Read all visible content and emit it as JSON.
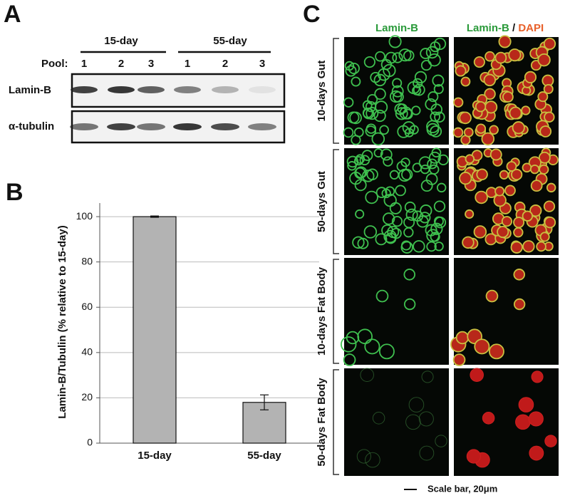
{
  "panel_a": {
    "label": "A",
    "groups": [
      "15-day",
      "55-day"
    ],
    "pool_label": "Pool:",
    "pools": [
      "1",
      "2",
      "3",
      "1",
      "2",
      "3"
    ],
    "rows": [
      "Lamin-B",
      "α-tubulin"
    ]
  },
  "chart_data": {
    "type": "bar",
    "panel_label": "B",
    "ylabel": "Lamin-B/Tubulin (% relative to 15-day)",
    "categories": [
      "15-day",
      "55-day"
    ],
    "values": [
      100,
      18
    ],
    "errors": [
      0.3,
      3.3
    ],
    "color": "#b3b3b3",
    "ylim": [
      0,
      106
    ],
    "yticks": [
      0,
      20,
      40,
      60,
      80,
      100
    ],
    "grid": true
  },
  "panel_c": {
    "label": "C",
    "column_1": "Lamin-B",
    "column_2": {
      "green": "Lamin-B",
      "separator": "/",
      "red": "DAPI"
    },
    "rows": [
      "10-days Gut",
      "50-days Gut",
      "10-days Fat Body",
      "50-days Fat Body"
    ],
    "scale_bar": "Scale bar, 20μm"
  }
}
